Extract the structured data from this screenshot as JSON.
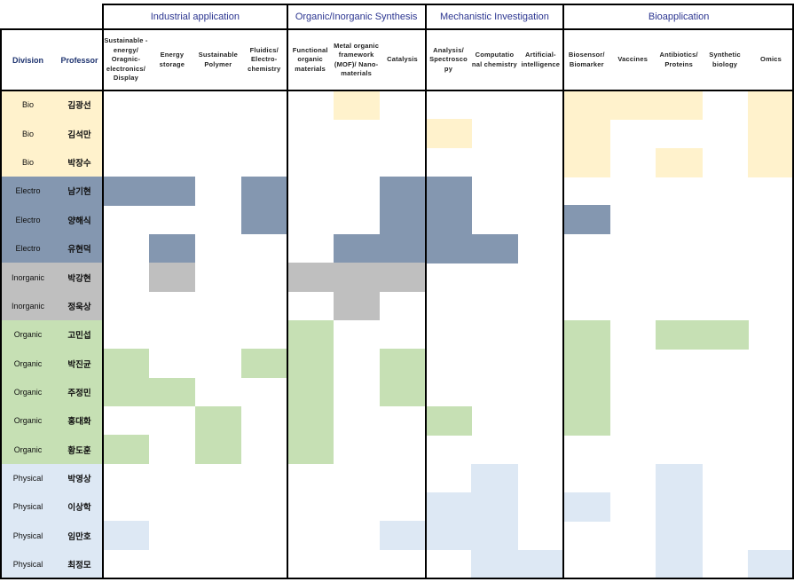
{
  "colors": {
    "Bio": "#fff2cc",
    "Electro": "#8497b0",
    "Inorganic": "#bfbfbf",
    "Organic": "#c6e0b4",
    "Physical": "#dde8f4",
    "group_header_text": "#2b3590"
  },
  "headers": {
    "division": "Division",
    "professor": "Professor"
  },
  "groups": [
    {
      "label": "Industrial application",
      "span": 4
    },
    {
      "label": "Organic/Inorganic Synthesis",
      "span": 3
    },
    {
      "label": "Mechanistic Investigation",
      "span": 3
    },
    {
      "label": "Bioapplication",
      "span": 5
    }
  ],
  "columns": [
    "Sustainable -energy/ Oragnic- electronics/ Display",
    "Energy storage",
    "Sustainable Polymer",
    "Fluidics/ Electro- chemistry",
    "Functional organic materials",
    "Metal organic framework (MOF)/ Nano- materials",
    "Catalysis",
    "Analysis/ Spectrosco py",
    "Computatio nal chemistry",
    "Artificial- intelligence",
    "Biosensor/ Biomarker",
    "Vaccines",
    "Antibiotics/ Proteins",
    "Synthetic biology",
    "Omics"
  ],
  "rows": [
    {
      "division": "Bio",
      "professor": "김광선",
      "marks": [
        0,
        0,
        0,
        0,
        0,
        1,
        0,
        0,
        0,
        0,
        1,
        1,
        1,
        0,
        1
      ]
    },
    {
      "division": "Bio",
      "professor": "김석만",
      "marks": [
        0,
        0,
        0,
        0,
        0,
        0,
        0,
        1,
        0,
        0,
        1,
        0,
        0,
        0,
        1
      ]
    },
    {
      "division": "Bio",
      "professor": "박장수",
      "marks": [
        0,
        0,
        0,
        0,
        0,
        0,
        0,
        0,
        0,
        0,
        1,
        0,
        1,
        0,
        1
      ]
    },
    {
      "division": "Electro",
      "professor": "남기현",
      "marks": [
        1,
        1,
        0,
        1,
        0,
        0,
        1,
        1,
        0,
        0,
        0,
        0,
        0,
        0,
        0
      ]
    },
    {
      "division": "Electro",
      "professor": "양해식",
      "marks": [
        0,
        0,
        0,
        1,
        0,
        0,
        1,
        1,
        0,
        0,
        1,
        0,
        0,
        0,
        0
      ]
    },
    {
      "division": "Electro",
      "professor": "유현덕",
      "marks": [
        0,
        1,
        0,
        0,
        0,
        1,
        1,
        1,
        1,
        0,
        0,
        0,
        0,
        0,
        0
      ]
    },
    {
      "division": "Inorganic",
      "professor": "박강현",
      "marks": [
        0,
        1,
        0,
        0,
        1,
        1,
        1,
        0,
        0,
        0,
        0,
        0,
        0,
        0,
        0
      ]
    },
    {
      "division": "Inorganic",
      "professor": "정욱상",
      "marks": [
        0,
        0,
        0,
        0,
        0,
        1,
        0,
        0,
        0,
        0,
        0,
        0,
        0,
        0,
        0
      ]
    },
    {
      "division": "Organic",
      "professor": "고민섭",
      "marks": [
        0,
        0,
        0,
        0,
        1,
        0,
        0,
        0,
        0,
        0,
        1,
        0,
        1,
        1,
        0
      ]
    },
    {
      "division": "Organic",
      "professor": "박진균",
      "marks": [
        1,
        0,
        0,
        1,
        1,
        0,
        1,
        0,
        0,
        0,
        1,
        0,
        0,
        0,
        0
      ]
    },
    {
      "division": "Organic",
      "professor": "주정민",
      "marks": [
        1,
        1,
        0,
        0,
        1,
        0,
        1,
        0,
        0,
        0,
        1,
        0,
        0,
        0,
        0
      ]
    },
    {
      "division": "Organic",
      "professor": "홍대화",
      "marks": [
        0,
        0,
        1,
        0,
        1,
        0,
        0,
        1,
        0,
        0,
        1,
        0,
        0,
        0,
        0
      ]
    },
    {
      "division": "Organic",
      "professor": "황도훈",
      "marks": [
        1,
        0,
        1,
        0,
        1,
        0,
        0,
        0,
        0,
        0,
        0,
        0,
        0,
        0,
        0
      ]
    },
    {
      "division": "Physical",
      "professor": "박영상",
      "marks": [
        0,
        0,
        0,
        0,
        0,
        0,
        0,
        0,
        1,
        0,
        0,
        0,
        1,
        0,
        0
      ]
    },
    {
      "division": "Physical",
      "professor": "이상학",
      "marks": [
        0,
        0,
        0,
        0,
        0,
        0,
        0,
        1,
        1,
        0,
        1,
        0,
        1,
        0,
        0
      ]
    },
    {
      "division": "Physical",
      "professor": "임만호",
      "marks": [
        1,
        0,
        0,
        0,
        0,
        0,
        1,
        1,
        1,
        0,
        0,
        0,
        1,
        0,
        0
      ]
    },
    {
      "division": "Physical",
      "professor": "최정모",
      "marks": [
        0,
        0,
        0,
        0,
        0,
        0,
        0,
        0,
        1,
        1,
        0,
        0,
        1,
        0,
        1
      ]
    }
  ]
}
